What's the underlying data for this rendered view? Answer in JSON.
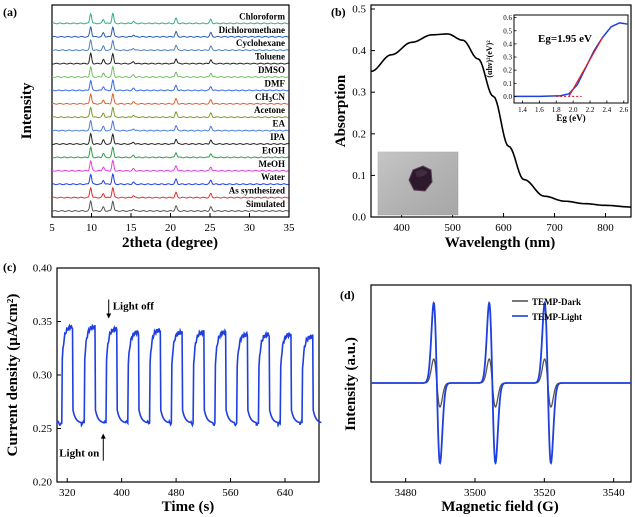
{
  "chart_data": [
    {
      "type": "line",
      "panel_label": "(a)",
      "xlabel": "2theta (degree)",
      "ylabel": "Intensity",
      "xlim": [
        5,
        35
      ],
      "x_ticks": [
        5,
        10,
        15,
        20,
        25,
        30,
        35
      ],
      "peaks_2theta": [
        9.9,
        11.5,
        12.7,
        15.3,
        20.7,
        25.1
      ],
      "series": [
        {
          "name": "Simulated",
          "color": "#555555"
        },
        {
          "name": "As synthesized",
          "color": "#e03030"
        },
        {
          "name": "Water",
          "color": "#1f3fe0"
        },
        {
          "name": "MeOH",
          "color": "#e040e0"
        },
        {
          "name": "EtOH",
          "color": "#2aa048"
        },
        {
          "name": "IPA",
          "color": "#222222"
        },
        {
          "name": "EA",
          "color": "#4a7be0"
        },
        {
          "name": "Acetone",
          "color": "#7a9c2a"
        },
        {
          "name": "CH3CN",
          "color": "#e06030"
        },
        {
          "name": "DMF",
          "color": "#3a6ae0"
        },
        {
          "name": "DMSO",
          "color": "#70c060"
        },
        {
          "name": "Toluene",
          "color": "#202020"
        },
        {
          "name": "Cyclohexane",
          "color": "#5080c0"
        },
        {
          "name": "Dichloromethane",
          "color": "#2a5ab0"
        },
        {
          "name": "Chloroform",
          "color": "#30b080"
        }
      ]
    },
    {
      "type": "line",
      "panel_label": "(b)",
      "xlabel": "Wavelength (nm)",
      "ylabel": "Absorption",
      "xlim": [
        340,
        850
      ],
      "ylim": [
        0.0,
        0.5
      ],
      "x_ticks": [
        400,
        500,
        600,
        700,
        800
      ],
      "y_ticks": [
        0.0,
        0.1,
        0.2,
        0.3,
        0.4,
        0.5
      ],
      "x": [
        340,
        380,
        420,
        460,
        490,
        520,
        550,
        580,
        610,
        640,
        680,
        720,
        760,
        800,
        850
      ],
      "y": [
        0.35,
        0.39,
        0.42,
        0.438,
        0.44,
        0.425,
        0.38,
        0.29,
        0.17,
        0.09,
        0.05,
        0.038,
        0.032,
        0.028,
        0.024
      ],
      "color": "#000000",
      "inset": {
        "annotation": "Eg=1.95 eV",
        "xlabel": "Eg (eV)",
        "ylabel": "(αhν)²(eV)²",
        "xlim": [
          1.3,
          2.65
        ],
        "ylim": [
          -0.05,
          0.62
        ],
        "x_ticks": [
          1.4,
          1.6,
          1.8,
          2.0,
          2.2,
          2.4,
          2.6
        ],
        "x_tick_labels": [
          "1.4",
          "1.6",
          "1.8",
          "2.0",
          "2.2",
          "2.4",
          "2.6"
        ],
        "y_ticks": [
          0.0,
          0.1,
          0.2,
          0.3,
          0.4,
          0.5,
          0.6
        ],
        "y_tick_labels": [
          "0.0",
          "0.1",
          "0.2",
          "0.3",
          "0.4",
          "0.5",
          "0.6"
        ],
        "curve_x": [
          1.3,
          1.6,
          1.85,
          1.95,
          2.05,
          2.15,
          2.25,
          2.35,
          2.45,
          2.55,
          2.65
        ],
        "curve_y": [
          0.0,
          0.0,
          0.005,
          0.02,
          0.09,
          0.22,
          0.35,
          0.45,
          0.53,
          0.56,
          0.55
        ],
        "fit_x": [
          1.95,
          2.35
        ],
        "fit_y": [
          0.0,
          0.45
        ],
        "baseline_x": [
          1.8,
          2.1
        ],
        "baseline_y": [
          0.0,
          0.0
        ],
        "curve_color": "#1f3fe0",
        "fit_color": "#e02020"
      }
    },
    {
      "type": "line",
      "panel_label": "(c)",
      "xlabel": "Time (s)",
      "ylabel": "Current density (μA/cm²)",
      "xlim": [
        305,
        690
      ],
      "ylim": [
        0.2,
        0.4
      ],
      "x_ticks": [
        320,
        400,
        480,
        560,
        640
      ],
      "y_ticks": [
        0.2,
        0.25,
        0.3,
        0.35,
        0.4
      ],
      "y_tick_labels": [
        "0.20",
        "0.25",
        "0.30",
        "0.35",
        "0.40"
      ],
      "on_times": [
        312,
        345,
        377,
        409,
        441,
        473,
        505,
        537,
        569,
        601,
        633,
        665
      ],
      "on_duration": 16,
      "off_level": 0.255,
      "on_levels": [
        0.345,
        0.345,
        0.343,
        0.34,
        0.342,
        0.34,
        0.34,
        0.34,
        0.338,
        0.338,
        0.338,
        0.336
      ],
      "x_end": 690,
      "color": "#1f3fe0",
      "annotations": [
        {
          "text": "Light off",
          "x": 381,
          "y": 0.35
        },
        {
          "text": "Light on",
          "x": 373,
          "y": 0.248
        }
      ]
    },
    {
      "type": "line",
      "panel_label": "(d)",
      "xlabel": "Magnetic field (G)",
      "ylabel": "Intensity (a.u.)",
      "xlim": [
        3470,
        3545
      ],
      "x_ticks": [
        3480,
        3500,
        3520,
        3540
      ],
      "line_centers": [
        3489.0,
        3505.0,
        3521.0
      ],
      "series": [
        {
          "name": "TEMP-Dark",
          "color": "#555555",
          "amplitude": 0.3
        },
        {
          "name": "TEMP-Light",
          "color": "#1f3fe0",
          "amplitude": 1.0
        }
      ]
    }
  ]
}
